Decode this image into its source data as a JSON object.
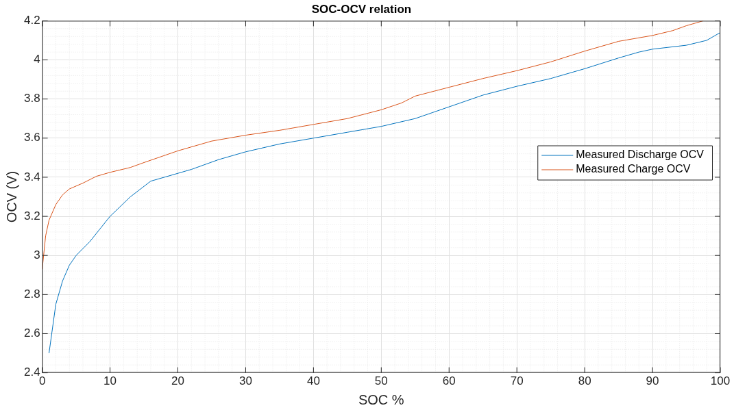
{
  "chart_data": {
    "type": "line",
    "title": "SOC-OCV relation",
    "xlabel": "SOC %",
    "ylabel": "OCV (V)",
    "xlim": [
      0,
      100
    ],
    "xticks": [
      0,
      10,
      20,
      30,
      40,
      50,
      60,
      70,
      80,
      90,
      100
    ],
    "ylim": [
      2.4,
      4.2
    ],
    "yticks": [
      2.4,
      2.6,
      2.8,
      3,
      3.2,
      3.4,
      3.6,
      3.8,
      4,
      4.2
    ],
    "grid": true,
    "legend": "right",
    "marker": "none",
    "line_style": "solid",
    "series": [
      {
        "name": "Measured Discharge OCV",
        "color": "#0072bd",
        "x": [
          1,
          2,
          3,
          4,
          5,
          7,
          10,
          13,
          16,
          20,
          22,
          26,
          30,
          35,
          40,
          45,
          50,
          55,
          60,
          65,
          70,
          75,
          80,
          85,
          88,
          90,
          95,
          98,
          100
        ],
        "values": [
          2.5,
          2.75,
          2.87,
          2.95,
          3.0,
          3.07,
          3.2,
          3.3,
          3.38,
          3.42,
          3.44,
          3.49,
          3.53,
          3.57,
          3.6,
          3.63,
          3.66,
          3.7,
          3.76,
          3.82,
          3.865,
          3.905,
          3.955,
          4.01,
          4.04,
          4.055,
          4.075,
          4.1,
          4.14
        ]
      },
      {
        "name": "Measured Charge OCV",
        "color": "#d95319",
        "x": [
          0,
          0.5,
          1,
          2,
          3,
          4,
          6,
          8,
          10,
          13,
          15,
          20,
          25,
          30,
          35,
          40,
          45,
          50,
          53,
          55,
          60,
          65,
          70,
          75,
          80,
          85,
          90,
          93,
          95,
          97.5
        ],
        "values": [
          2.93,
          3.1,
          3.18,
          3.26,
          3.31,
          3.34,
          3.37,
          3.405,
          3.425,
          3.45,
          3.475,
          3.535,
          3.585,
          3.615,
          3.64,
          3.67,
          3.7,
          3.745,
          3.78,
          3.815,
          3.86,
          3.905,
          3.945,
          3.99,
          4.045,
          4.095,
          4.125,
          4.15,
          4.175,
          4.2
        ]
      }
    ]
  }
}
